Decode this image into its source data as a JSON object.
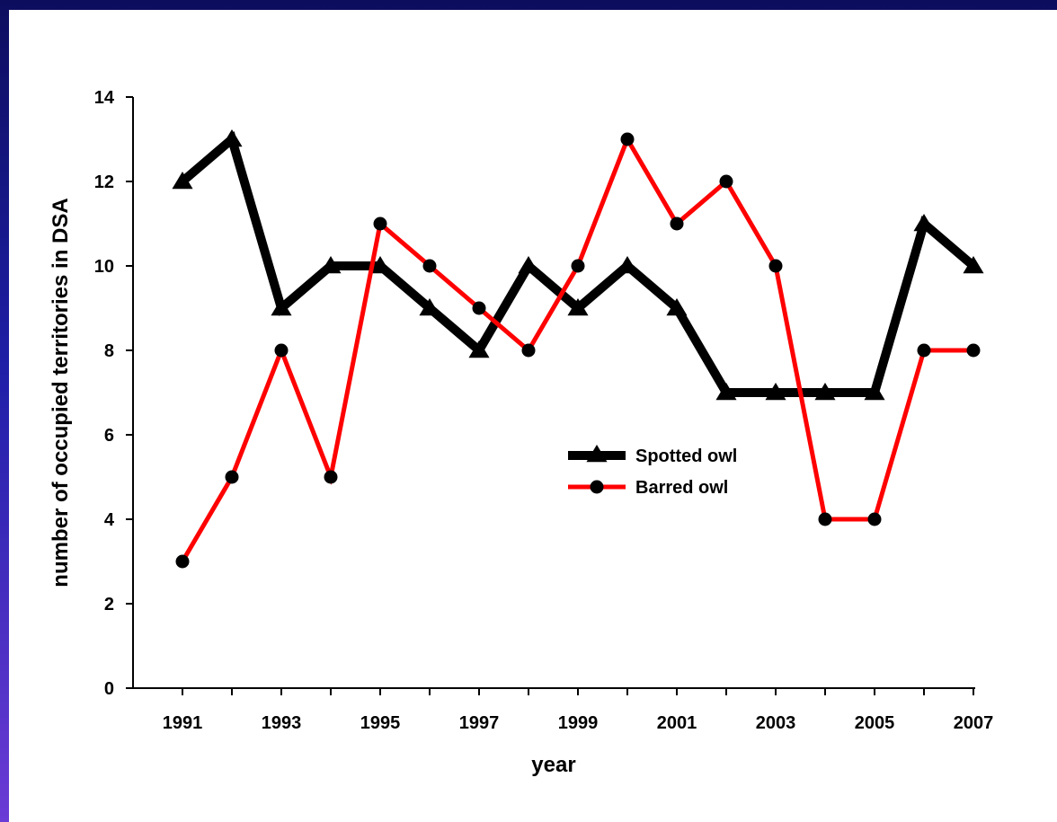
{
  "chart_data": {
    "type": "line",
    "x": [
      1991,
      1992,
      1993,
      1994,
      1995,
      1996,
      1997,
      1998,
      1999,
      2000,
      2001,
      2002,
      2003,
      2004,
      2005,
      2006,
      2007
    ],
    "series": [
      {
        "name": "Spotted owl",
        "color": "#000000",
        "marker": "triangle",
        "values": [
          12,
          13,
          9,
          10,
          10,
          9,
          8,
          10,
          9,
          10,
          9,
          7,
          7,
          7,
          7,
          11,
          10
        ]
      },
      {
        "name": "Barred owl",
        "color": "#ff0000",
        "marker": "circle",
        "values": [
          3,
          5,
          8,
          5,
          11,
          10,
          9,
          8,
          10,
          13,
          11,
          12,
          10,
          4,
          4,
          8,
          8
        ]
      }
    ],
    "xlabel": "year",
    "ylabel": "number of occupied territories in DSA",
    "ylim": [
      0,
      14
    ],
    "yticks": [
      0,
      2,
      4,
      6,
      8,
      10,
      12,
      14
    ],
    "xticks": [
      1991,
      1993,
      1995,
      1997,
      1999,
      2001,
      2003,
      2005,
      2007
    ],
    "grid": false,
    "legend": "center-right"
  }
}
